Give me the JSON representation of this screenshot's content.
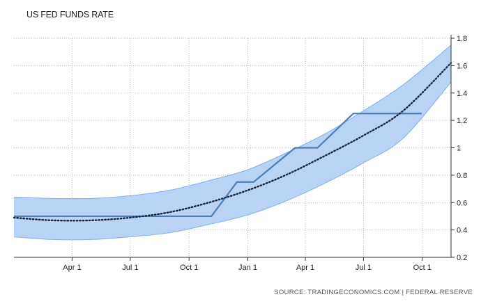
{
  "chart_data": {
    "type": "line",
    "title": "US FED FUNDS RATE",
    "source": "SOURCE: TRADINGECONOMICS.COM | FEDERAL RESERVE",
    "xlabel": "",
    "ylabel": "",
    "ylim": [
      0.2,
      1.8
    ],
    "yticks": [
      0.2,
      0.4,
      0.6,
      0.8,
      1,
      1.2,
      1.4,
      1.6,
      1.8
    ],
    "y_axis_side": "right",
    "xlim": [
      "2016-01-01",
      "2017-11-15"
    ],
    "xticks": [
      {
        "label": "Apr 1",
        "date": "2016-04-01"
      },
      {
        "label": "Jul 1",
        "date": "2016-07-01"
      },
      {
        "label": "Oct 1",
        "date": "2016-10-01"
      },
      {
        "label": "Jan 1",
        "date": "2017-01-01"
      },
      {
        "label": "Apr 1",
        "date": "2017-04-01"
      },
      {
        "label": "Jul 1",
        "date": "2017-07-01"
      },
      {
        "label": "Oct 1",
        "date": "2017-10-01"
      }
    ],
    "grid": true,
    "colors": {
      "rate": "#4a7fb8",
      "trend": "#15243d",
      "band": "#b8d3f5",
      "band_edge": "#7fb0e8",
      "grid": "#bbbbbb"
    },
    "series": [
      {
        "style": "step",
        "points": [
          [
            "2016-01-01",
            0.5
          ],
          [
            "2016-11-05",
            0.5
          ],
          [
            "2016-12-15",
            0.75
          ],
          [
            "2017-01-10",
            0.75
          ],
          [
            "2017-03-16",
            1.0
          ],
          [
            "2017-04-20",
            1.0
          ],
          [
            "2017-06-15",
            1.25
          ],
          [
            "2017-09-30",
            1.25
          ]
        ]
      },
      {
        "style": "dotted-trend",
        "points": [
          [
            "2016-01-01",
            0.49
          ],
          [
            "2016-03-01",
            0.47
          ],
          [
            "2016-05-01",
            0.47
          ],
          [
            "2016-07-01",
            0.49
          ],
          [
            "2016-09-01",
            0.53
          ],
          [
            "2016-11-01",
            0.6
          ],
          [
            "2017-01-01",
            0.69
          ],
          [
            "2017-03-01",
            0.8
          ],
          [
            "2017-05-01",
            0.94
          ],
          [
            "2017-07-01",
            1.09
          ],
          [
            "2017-09-01",
            1.27
          ],
          [
            "2017-11-15",
            1.62
          ]
        ]
      },
      {
        "style": "band",
        "upper": [
          [
            "2016-01-01",
            0.64
          ],
          [
            "2016-03-01",
            0.63
          ],
          [
            "2016-05-01",
            0.63
          ],
          [
            "2016-07-01",
            0.65
          ],
          [
            "2016-09-01",
            0.69
          ],
          [
            "2016-11-01",
            0.76
          ],
          [
            "2017-01-01",
            0.84
          ],
          [
            "2017-03-01",
            0.96
          ],
          [
            "2017-05-01",
            1.1
          ],
          [
            "2017-07-01",
            1.27
          ],
          [
            "2017-09-01",
            1.46
          ],
          [
            "2017-11-15",
            1.75
          ]
        ],
        "lower": [
          [
            "2016-01-01",
            0.35
          ],
          [
            "2016-03-01",
            0.33
          ],
          [
            "2016-05-01",
            0.33
          ],
          [
            "2016-07-01",
            0.35
          ],
          [
            "2016-09-01",
            0.38
          ],
          [
            "2016-11-01",
            0.44
          ],
          [
            "2017-01-01",
            0.51
          ],
          [
            "2017-03-01",
            0.61
          ],
          [
            "2017-05-01",
            0.74
          ],
          [
            "2017-07-01",
            0.89
          ],
          [
            "2017-09-01",
            1.07
          ],
          [
            "2017-11-15",
            1.48
          ]
        ]
      }
    ]
  }
}
